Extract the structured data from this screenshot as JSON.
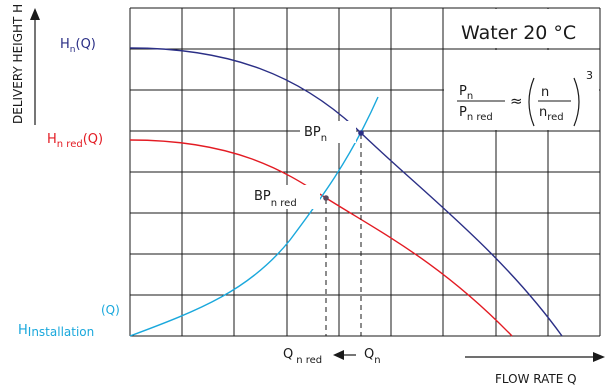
{
  "title": "Water 20 °C",
  "axes": {
    "y_label": "DELIVERY HEIGHT H",
    "x_label": "FLOW RATE  Q"
  },
  "curves": {
    "pump_nominal": {
      "label_main": "H",
      "label_sub": "n",
      "label_tail": "(Q)",
      "color": "#2b2f86"
    },
    "pump_reduced": {
      "label_main": "H",
      "label_sub": "n red",
      "label_tail": "(Q)",
      "color": "#e31b23"
    },
    "installation": {
      "label_top": "(Q)",
      "label_main": "H",
      "label_sub": "Installation",
      "color": "#1aa8dc"
    }
  },
  "points": {
    "bp_nominal": {
      "main": "BP",
      "sub": "n"
    },
    "bp_reduced": {
      "main": "BP",
      "sub": "n red"
    }
  },
  "flow_markers": {
    "q_reduced": {
      "main": "Q",
      "sub": "n red"
    },
    "q_nominal": {
      "main": "Q",
      "sub": "n"
    }
  },
  "formula": {
    "lhs_num_main": "P",
    "lhs_num_sub": "n",
    "lhs_den_main": "P",
    "lhs_den_sub": "n red",
    "approx": "≈",
    "rhs_num": "n",
    "rhs_den_main": "n",
    "rhs_den_sub": "red",
    "exponent": "3"
  },
  "colors": {
    "grid": "#1a1a1a",
    "text": "#1a1a1a"
  }
}
